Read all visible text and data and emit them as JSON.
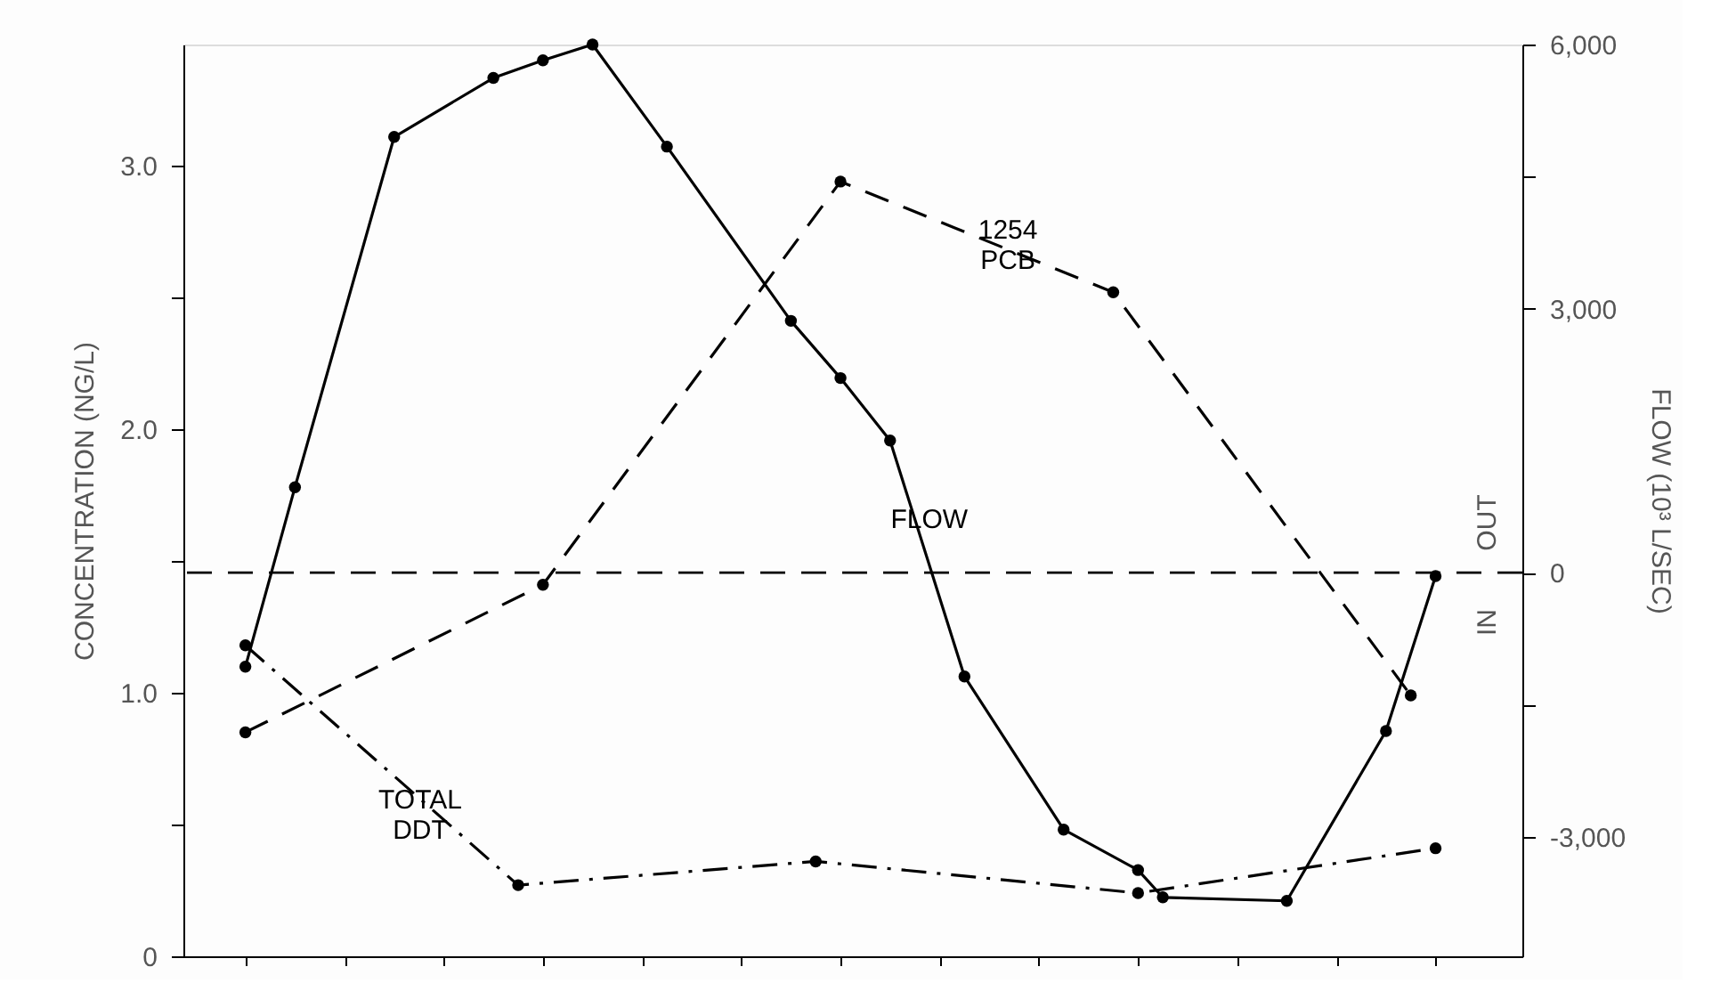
{
  "chart_data": {
    "type": "line",
    "ylabel": "CONCENTRATION (NG/L)",
    "y2label": "FLOW (10³ L/SEC)",
    "categories": [
      null,
      null,
      null,
      null,
      null,
      null,
      null,
      null,
      null,
      null,
      null,
      null,
      null,
      null,
      null,
      null,
      null,
      null,
      null,
      null,
      null,
      null,
      null,
      null,
      null,
      null,
      null,
      null,
      null,
      null,
      null,
      null,
      null,
      null,
      null,
      null,
      null,
      null,
      null,
      null,
      null,
      null,
      null,
      null,
      null,
      null,
      null,
      null,
      null,
      null,
      null,
      null,
      null,
      null
    ],
    "ylim": [
      0,
      3.46
    ],
    "yticks": [
      0,
      {
        "value": 0.5,
        "label": null
      },
      {
        "value": 1,
        "label": "1.0"
      },
      {
        "value": 1.5,
        "label": null
      },
      {
        "value": 2,
        "label": "2.0"
      },
      {
        "value": 2.5,
        "label": null
      },
      {
        "value": 3,
        "label": "3.0"
      }
    ],
    "y2lim": [
      -4360,
      6000
    ],
    "y2ticks": [
      {
        "value": -3000,
        "label": "-3,000"
      },
      {
        "value": -1500,
        "label": null
      },
      0,
      {
        "value": 3000,
        "label": "3,000"
      },
      {
        "value": 4500,
        "label": null
      },
      {
        "value": 6000,
        "label": "6,000"
      }
    ],
    "tick_labels": "y",
    "grid": false,
    "marker": "circle",
    "series": [
      {
        "name": "FLOW",
        "axis": "y2",
        "color": "#000000",
        "line_style": "solid",
        "values": [
          null,
          null,
          -1070,
          null,
          970,
          null,
          null,
          null,
          4950,
          null,
          null,
          null,
          5620,
          null,
          5820,
          null,
          6000,
          null,
          null,
          4840,
          null,
          null,
          null,
          null,
          2860,
          null,
          2210,
          null,
          1500,
          null,
          null,
          -1180,
          null,
          null,
          null,
          -2920,
          null,
          null,
          -3380,
          -3690,
          null,
          null,
          null,
          null,
          -3730,
          null,
          null,
          null,
          -1800,
          null,
          -40,
          null,
          null,
          null
        ]
      },
      {
        "name": "1254\nPCB",
        "color": "#000000",
        "line_style": "dashed",
        "values": [
          null,
          null,
          0.85,
          null,
          null,
          null,
          null,
          null,
          null,
          null,
          null,
          null,
          null,
          null,
          1.41,
          null,
          null,
          null,
          null,
          null,
          null,
          null,
          null,
          null,
          null,
          null,
          2.94,
          null,
          null,
          null,
          null,
          null,
          null,
          null,
          null,
          null,
          null,
          2.52,
          null,
          null,
          null,
          null,
          null,
          null,
          null,
          null,
          null,
          null,
          null,
          0.99,
          null,
          null,
          null,
          null
        ]
      },
      {
        "name": "TOTAL\nDDT",
        "color": "#000000",
        "line_style": "dashdot",
        "values": [
          null,
          null,
          1.18,
          null,
          null,
          null,
          null,
          null,
          null,
          null,
          null,
          null,
          null,
          0.27,
          null,
          null,
          null,
          null,
          null,
          null,
          null,
          null,
          null,
          null,
          null,
          0.36,
          null,
          null,
          null,
          null,
          null,
          null,
          null,
          null,
          null,
          null,
          null,
          null,
          0.24,
          null,
          null,
          null,
          null,
          null,
          null,
          null,
          null,
          null,
          null,
          null,
          0.41,
          null,
          null,
          null
        ]
      }
    ],
    "ref_lines": [
      {
        "axis": "y2",
        "value": 0,
        "color": "#000000",
        "line_style": "dashed"
      }
    ],
    "annotations": [
      "IN",
      "OUT"
    ]
  }
}
